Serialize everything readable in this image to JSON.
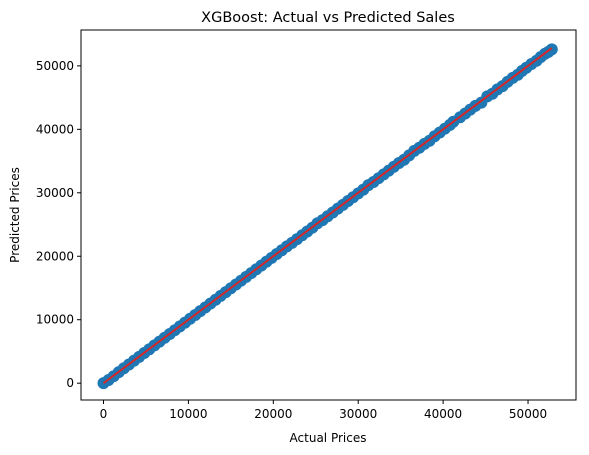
{
  "chart_data": {
    "type": "scatter",
    "title": "XGBoost: Actual vs Predicted Sales",
    "xlabel": "Actual Prices",
    "ylabel": "Predicted Prices",
    "xlim": [
      -2650,
      55650
    ],
    "ylim": [
      -2650,
      55650
    ],
    "xticks": [
      0,
      10000,
      20000,
      30000,
      40000,
      50000
    ],
    "yticks": [
      0,
      10000,
      20000,
      30000,
      40000,
      50000
    ],
    "xtick_labels": [
      "0",
      "10000",
      "20000",
      "30000",
      "40000",
      "50000"
    ],
    "ytick_labels": [
      "0",
      "10000",
      "20000",
      "30000",
      "40000",
      "50000"
    ],
    "grid": false,
    "point_color": "#1f77b4",
    "line_color": "#d62728",
    "points": [
      [
        0,
        0
      ],
      [
        600,
        500
      ],
      [
        1200,
        1100
      ],
      [
        1800,
        1750
      ],
      [
        2400,
        2350
      ],
      [
        3000,
        2950
      ],
      [
        3600,
        3550
      ],
      [
        4200,
        4150
      ],
      [
        4800,
        4750
      ],
      [
        5400,
        5350
      ],
      [
        6000,
        5950
      ],
      [
        6600,
        6550
      ],
      [
        7200,
        7150
      ],
      [
        7800,
        7750
      ],
      [
        8400,
        8350
      ],
      [
        9000,
        8950
      ],
      [
        9600,
        9550
      ],
      [
        10200,
        10150
      ],
      [
        10800,
        10750
      ],
      [
        11400,
        11350
      ],
      [
        12000,
        11950
      ],
      [
        12600,
        12550
      ],
      [
        13200,
        13150
      ],
      [
        13800,
        13750
      ],
      [
        14400,
        14350
      ],
      [
        15000,
        14950
      ],
      [
        15600,
        15550
      ],
      [
        16200,
        16150
      ],
      [
        16800,
        16750
      ],
      [
        17400,
        17350
      ],
      [
        18000,
        17950
      ],
      [
        18600,
        18550
      ],
      [
        19200,
        19150
      ],
      [
        19800,
        19750
      ],
      [
        20400,
        20350
      ],
      [
        21000,
        20950
      ],
      [
        21600,
        21550
      ],
      [
        22200,
        22100
      ],
      [
        22800,
        22700
      ],
      [
        23400,
        23300
      ],
      [
        24000,
        23900
      ],
      [
        24600,
        24500
      ],
      [
        25200,
        25200
      ],
      [
        25800,
        25700
      ],
      [
        26400,
        26300
      ],
      [
        27000,
        26900
      ],
      [
        27600,
        27500
      ],
      [
        28200,
        28100
      ],
      [
        28800,
        28700
      ],
      [
        29400,
        29300
      ],
      [
        30000,
        29900
      ],
      [
        30600,
        30500
      ],
      [
        31200,
        31200
      ],
      [
        31800,
        31700
      ],
      [
        32400,
        32300
      ],
      [
        33000,
        32900
      ],
      [
        33600,
        33500
      ],
      [
        34200,
        34100
      ],
      [
        34800,
        34700
      ],
      [
        35400,
        35200
      ],
      [
        36000,
        35900
      ],
      [
        36600,
        36600
      ],
      [
        37200,
        37100
      ],
      [
        37800,
        37700
      ],
      [
        38400,
        38200
      ],
      [
        39000,
        38900
      ],
      [
        39600,
        39500
      ],
      [
        40200,
        40100
      ],
      [
        40800,
        40700
      ],
      [
        41200,
        41200
      ],
      [
        42000,
        41900
      ],
      [
        42600,
        42500
      ],
      [
        43200,
        43100
      ],
      [
        43800,
        43700
      ],
      [
        44500,
        44200
      ],
      [
        45200,
        45200
      ],
      [
        45800,
        45600
      ],
      [
        46400,
        46300
      ],
      [
        47000,
        46800
      ],
      [
        47600,
        47500
      ],
      [
        48200,
        48100
      ],
      [
        48800,
        48600
      ],
      [
        49300,
        49200
      ],
      [
        49800,
        49700
      ],
      [
        50400,
        50300
      ],
      [
        51000,
        50800
      ],
      [
        51500,
        51400
      ],
      [
        52000,
        51900
      ],
      [
        52400,
        52200
      ],
      [
        52800,
        52600
      ]
    ],
    "trend_line": {
      "x": [
        0,
        52800
      ],
      "y": [
        0,
        52800
      ]
    }
  }
}
